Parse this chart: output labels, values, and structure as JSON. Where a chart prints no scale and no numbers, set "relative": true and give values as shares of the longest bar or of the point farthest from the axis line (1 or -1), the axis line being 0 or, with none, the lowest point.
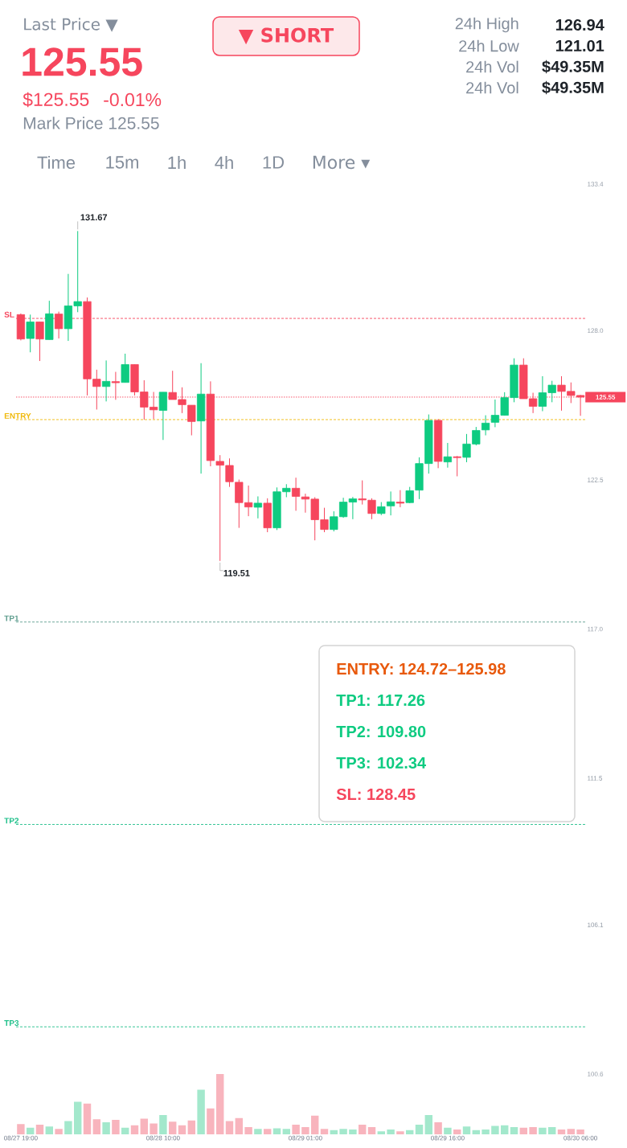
{
  "chart_data": [
    {
      "type": "other",
      "annotations": [
        "Last Price ▼",
        "125.55",
        "$125.55",
        "-0.01%",
        "Mark Price 125.55",
        "▼ SHORT",
        "24h High",
        "126.94",
        "24h Low",
        "121.01",
        "24h Vol",
        "$49.35M",
        "24h Vol",
        "$49.35M",
        "Time",
        "15m",
        "1h",
        "4h",
        "1D",
        "More ▾"
      ]
    },
    {
      "type": "candlestick",
      "categories": [
        null,
        null,
        null,
        null,
        null,
        null,
        null,
        null,
        null,
        null,
        null,
        null,
        null,
        null,
        null,
        null,
        null,
        null,
        null,
        null,
        null,
        null,
        null,
        null,
        null,
        null,
        null,
        null,
        null,
        null,
        null,
        null,
        null,
        null,
        null,
        null,
        null,
        null,
        null,
        null,
        null,
        null,
        null,
        null,
        null,
        null,
        null,
        null,
        null,
        null,
        null,
        null,
        null,
        null,
        null,
        null,
        null,
        null,
        null,
        null
      ],
      "ohlc": [
        [
          128.59,
          128.63,
          127.64,
          127.69
        ],
        [
          127.71,
          128.59,
          127.2,
          128.32
        ],
        [
          128.32,
          128.32,
          126.88,
          127.69
        ],
        [
          127.67,
          129.1,
          127.67,
          128.62
        ],
        [
          128.61,
          128.7,
          127.71,
          128.07
        ],
        [
          128.07,
          130.09,
          127.62,
          128.91
        ],
        [
          128.91,
          131.67,
          128.68,
          129.07
        ],
        [
          129.07,
          129.22,
          125.61,
          126.22
        ],
        [
          126.21,
          126.56,
          125.09,
          125.94
        ],
        [
          125.94,
          126.9,
          125.39,
          126.13
        ],
        [
          126.12,
          126.48,
          125.45,
          126.08
        ],
        [
          126.09,
          127.15,
          126.09,
          126.75
        ],
        [
          126.75,
          126.75,
          125.61,
          125.74
        ],
        [
          125.74,
          126.17,
          124.72,
          125.18
        ],
        [
          125.18,
          125.74,
          124.74,
          125.08
        ],
        [
          125.06,
          125.73,
          123.97,
          125.73
        ],
        [
          125.72,
          126.52,
          125.46,
          125.46
        ],
        [
          125.46,
          125.91,
          124.96,
          125.27
        ],
        [
          125.25,
          125.25,
          124.14,
          124.65
        ],
        [
          124.67,
          126.8,
          122.73,
          125.66
        ],
        [
          125.66,
          126.13,
          123.0,
          123.21
        ],
        [
          123.18,
          123.41,
          119.51,
          123.04
        ],
        [
          123.03,
          123.29,
          122.24,
          122.43
        ],
        [
          122.41,
          122.51,
          120.73,
          121.66
        ],
        [
          121.66,
          122.29,
          121.16,
          121.5
        ],
        [
          121.49,
          121.89,
          121.08,
          121.64
        ],
        [
          121.64,
          121.82,
          120.57,
          120.73
        ],
        [
          120.73,
          122.22,
          120.65,
          122.06
        ],
        [
          122.06,
          122.34,
          121.86,
          122.19
        ],
        [
          122.19,
          122.58,
          121.36,
          121.89
        ],
        [
          121.87,
          121.99,
          121.29,
          121.79
        ],
        [
          121.79,
          121.86,
          120.27,
          121.03
        ],
        [
          121.03,
          121.47,
          120.57,
          120.67
        ],
        [
          120.67,
          121.34,
          120.6,
          121.14
        ],
        [
          121.14,
          121.84,
          121.1,
          121.68
        ],
        [
          121.68,
          121.87,
          121.05,
          121.8
        ],
        [
          121.8,
          122.48,
          121.59,
          121.76
        ],
        [
          121.75,
          121.82,
          121.05,
          121.26
        ],
        [
          121.26,
          121.68,
          121.2,
          121.51
        ],
        [
          121.54,
          122.07,
          121.19,
          121.69
        ],
        [
          121.68,
          122.12,
          121.49,
          121.64
        ],
        [
          121.66,
          122.24,
          121.64,
          122.1
        ],
        [
          122.12,
          123.33,
          121.79,
          123.1
        ],
        [
          123.1,
          124.91,
          122.73,
          124.69
        ],
        [
          124.69,
          124.74,
          122.93,
          123.18
        ],
        [
          123.16,
          123.86,
          122.95,
          123.35
        ],
        [
          123.35,
          123.38,
          122.63,
          123.32
        ],
        [
          123.33,
          124.19,
          123.15,
          123.82
        ],
        [
          123.82,
          124.45,
          123.77,
          124.32
        ],
        [
          124.34,
          124.88,
          124.14,
          124.59
        ],
        [
          124.62,
          125.46,
          124.44,
          124.88
        ],
        [
          124.88,
          125.73,
          124.88,
          125.53
        ],
        [
          125.53,
          126.98,
          125.36,
          126.73
        ],
        [
          126.73,
          126.98,
          125.49,
          125.49
        ],
        [
          125.49,
          125.71,
          124.96,
          125.21
        ],
        [
          125.21,
          126.32,
          125.03,
          125.71
        ],
        [
          125.71,
          126.15,
          125.36,
          125.99
        ],
        [
          125.99,
          126.32,
          125.05,
          125.76
        ],
        [
          125.76,
          126.09,
          125.33,
          125.61
        ],
        [
          125.61,
          125.63,
          124.86,
          125.55
        ]
      ],
      "colors": [
        "#f6465d",
        "#0ecb81",
        "#f6465d",
        "#0ecb81",
        "#f6465d",
        "#0ecb81",
        "#0ecb81",
        "#f6465d",
        "#f6465d",
        "#0ecb81",
        "#f6465d",
        "#0ecb81",
        "#f6465d",
        "#f6465d",
        "#f6465d",
        "#0ecb81",
        "#f6465d",
        "#f6465d",
        "#f6465d",
        "#0ecb81",
        "#f6465d",
        "#f6465d",
        "#f6465d",
        "#f6465d",
        "#f6465d",
        "#0ecb81",
        "#f6465d",
        "#0ecb81",
        "#0ecb81",
        "#f6465d",
        "#f6465d",
        "#f6465d",
        "#f6465d",
        "#0ecb81",
        "#0ecb81",
        "#0ecb81",
        "#f6465d",
        "#f6465d",
        "#0ecb81",
        "#0ecb81",
        "#f6465d",
        "#0ecb81",
        "#0ecb81",
        "#0ecb81",
        "#f6465d",
        "#0ecb81",
        "#f6465d",
        "#0ecb81",
        "#0ecb81",
        "#0ecb81",
        "#0ecb81",
        "#0ecb81",
        "#0ecb81",
        "#f6465d",
        "#f6465d",
        "#0ecb81",
        "#0ecb81",
        "#f6465d",
        "#f6465d",
        "#f6465d"
      ],
      "ylim": [
        100.6,
        133.4
      ],
      "yticks": [
        133.4,
        {
          "value": 128,
          "label": "128.0"
        },
        122.5,
        {
          "value": 117,
          "label": "117.0"
        },
        111.5,
        106.1,
        100.6
      ],
      "tick_labels": "y",
      "ref_lines": [
        {
          "axis": "y",
          "value": 128.45,
          "label": "SL",
          "color": "#f6465d",
          "line_style": "dashed"
        },
        {
          "axis": "y",
          "value": 125.55,
          "color": "#f6465d",
          "line_style": "dotted"
        },
        {
          "axis": "y",
          "value": 124.72,
          "label": "ENTRY",
          "color": "#f0b90b",
          "line_style": "dashed"
        },
        {
          "axis": "y",
          "value": 117.26,
          "label": "TP1",
          "color": "#5f9e8f",
          "line_style": "dashed"
        },
        {
          "axis": "y",
          "value": 109.8,
          "label": "TP2",
          "color": "#21c08b",
          "line_style": "dashed"
        },
        {
          "axis": "y",
          "value": 102.34,
          "label": "TP3",
          "color": "#21c08b",
          "line_style": "dashed"
        }
      ],
      "annotations": [
        "131.67",
        "119.51",
        "125.55",
        "ENTRY: 124.72–125.98",
        "TP1: 117.26",
        "TP2: 109.80",
        "TP3: 102.34",
        "SL: 128.45"
      ]
    },
    {
      "type": "bar",
      "relative": true,
      "tick_labels": "x",
      "categories": [
        "08/27 19:00",
        null,
        null,
        null,
        null,
        null,
        null,
        null,
        null,
        null,
        null,
        null,
        null,
        null,
        null,
        "08/28 10:00",
        null,
        null,
        null,
        null,
        null,
        null,
        null,
        null,
        null,
        null,
        null,
        null,
        null,
        null,
        "08/29 01:00",
        null,
        null,
        null,
        null,
        null,
        null,
        null,
        null,
        null,
        null,
        null,
        null,
        null,
        null,
        "08/29 16:00",
        null,
        null,
        null,
        null,
        null,
        null,
        null,
        null,
        null,
        null,
        null,
        null,
        null,
        "08/30 06:00"
      ],
      "values": [
        0.17,
        0.11,
        0.16,
        0.13,
        0.09,
        0.22,
        0.54,
        0.51,
        0.25,
        0.2,
        0.24,
        0.11,
        0.15,
        0.26,
        0.18,
        0.32,
        0.21,
        0.15,
        0.23,
        0.74,
        0.43,
        1,
        0.22,
        0.27,
        0.12,
        0.09,
        0.09,
        0.1,
        0.09,
        0.16,
        0.12,
        0.31,
        0.09,
        0.07,
        0.09,
        0.08,
        0.16,
        0.12,
        0.05,
        0.08,
        0.05,
        0.07,
        0.16,
        0.32,
        0.2,
        0.11,
        0.08,
        0.13,
        0.07,
        0.08,
        0.14,
        0.15,
        0.12,
        0.11,
        0.12,
        0.11,
        0.12,
        0.08,
        0.09,
        0.08
      ],
      "colors": [
        "#f8b4bd",
        "#a3e8cc",
        "#f8b4bd",
        "#a3e8cc",
        "#f8b4bd",
        "#a3e8cc",
        "#a3e8cc",
        "#f8b4bd",
        "#f8b4bd",
        "#a3e8cc",
        "#f8b4bd",
        "#a3e8cc",
        "#f8b4bd",
        "#f8b4bd",
        "#f8b4bd",
        "#a3e8cc",
        "#f8b4bd",
        "#f8b4bd",
        "#f8b4bd",
        "#a3e8cc",
        "#f8b4bd",
        "#f8b4bd",
        "#f8b4bd",
        "#f8b4bd",
        "#f8b4bd",
        "#a3e8cc",
        "#f8b4bd",
        "#a3e8cc",
        "#a3e8cc",
        "#f8b4bd",
        "#f8b4bd",
        "#f8b4bd",
        "#f8b4bd",
        "#a3e8cc",
        "#a3e8cc",
        "#a3e8cc",
        "#f8b4bd",
        "#f8b4bd",
        "#a3e8cc",
        "#a3e8cc",
        "#f8b4bd",
        "#a3e8cc",
        "#a3e8cc",
        "#a3e8cc",
        "#f8b4bd",
        "#a3e8cc",
        "#f8b4bd",
        "#a3e8cc",
        "#a3e8cc",
        "#a3e8cc",
        "#a3e8cc",
        "#a3e8cc",
        "#a3e8cc",
        "#f8b4bd",
        "#f8b4bd",
        "#a3e8cc",
        "#a3e8cc",
        "#f8b4bd",
        "#f8b4bd",
        "#f8b4bd"
      ]
    }
  ]
}
